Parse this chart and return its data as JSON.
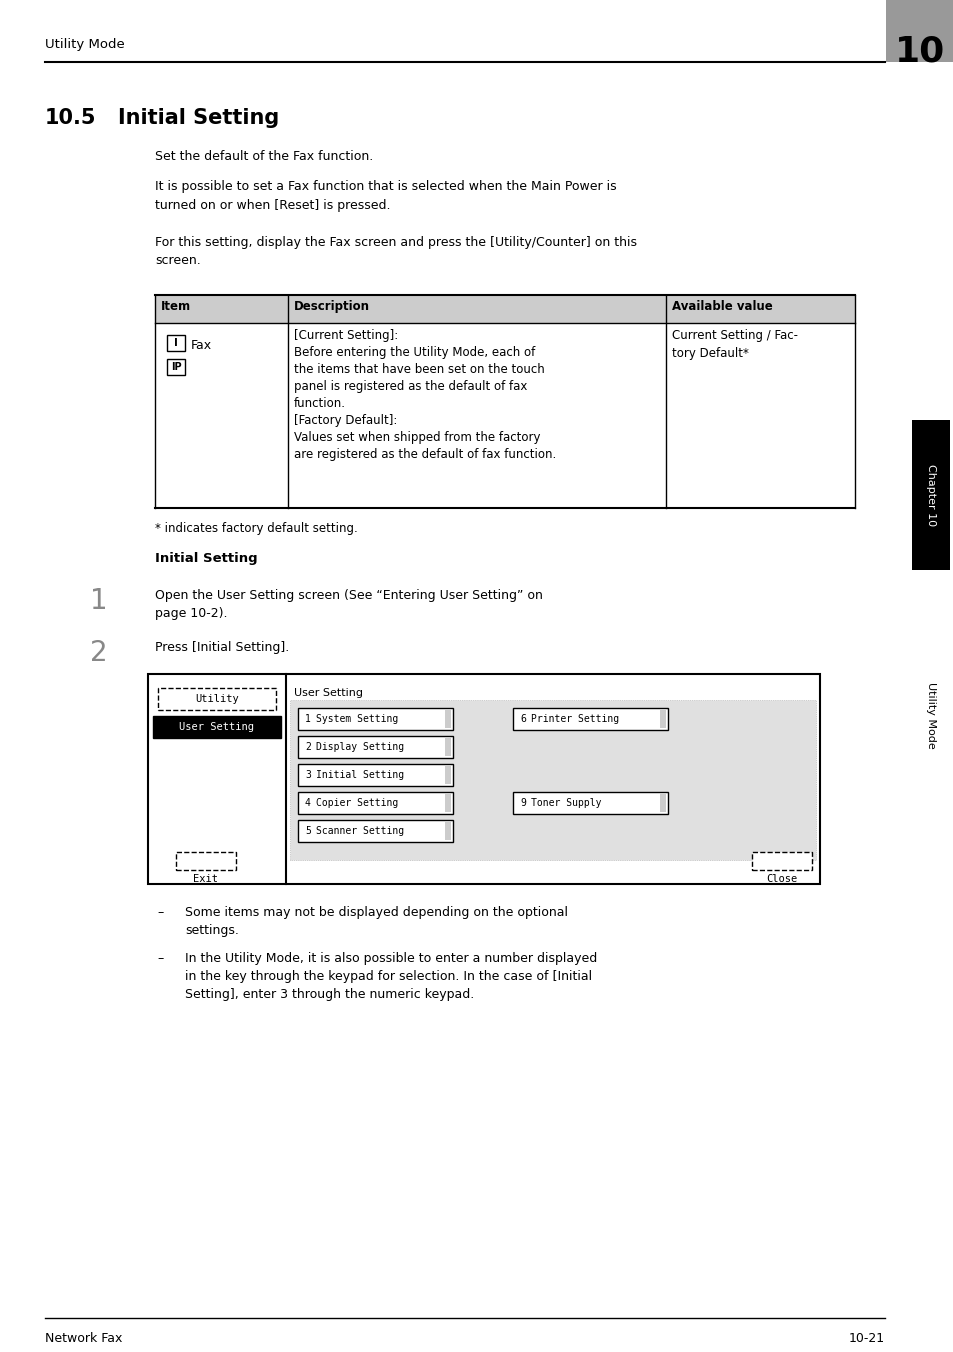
{
  "bg_color": "#ffffff",
  "header_text": "Utility Mode",
  "header_num": "10",
  "para1": "Set the default of the Fax function.",
  "para2": "It is possible to set a Fax function that is selected when the Main Power is\nturned on or when [Reset] is pressed.",
  "para3": "For this setting, display the Fax screen and press the [Utility/Counter] on this\nscreen.",
  "table_col1_text": "Fax",
  "table_col2": "[Current Setting]:\nBefore entering the Utility Mode, each of\nthe items that have been set on the touch\npanel is registered as the default of fax\nfunction.\n[Factory Default]:\nValues set when shipped from the factory\nare registered as the default of fax function.",
  "table_col3": "Current Setting / Fac-\ntory Default*",
  "footnote": "* indicates factory default setting.",
  "bold_heading": "Initial Setting",
  "step1_text": "Open the User Setting screen (See “Entering User Setting” on\npage 10-2).",
  "step2_text": "Press [Initial Setting].",
  "bullet1": "Some items may not be displayed depending on the optional\nsettings.",
  "bullet2": "In the Utility Mode, it is also possible to enter a number displayed\nin the key through the keypad for selection. In the case of [Initial\nSetting], enter 3 through the numeric keypad.",
  "footer_left": "Network Fax",
  "footer_right": "10-21"
}
